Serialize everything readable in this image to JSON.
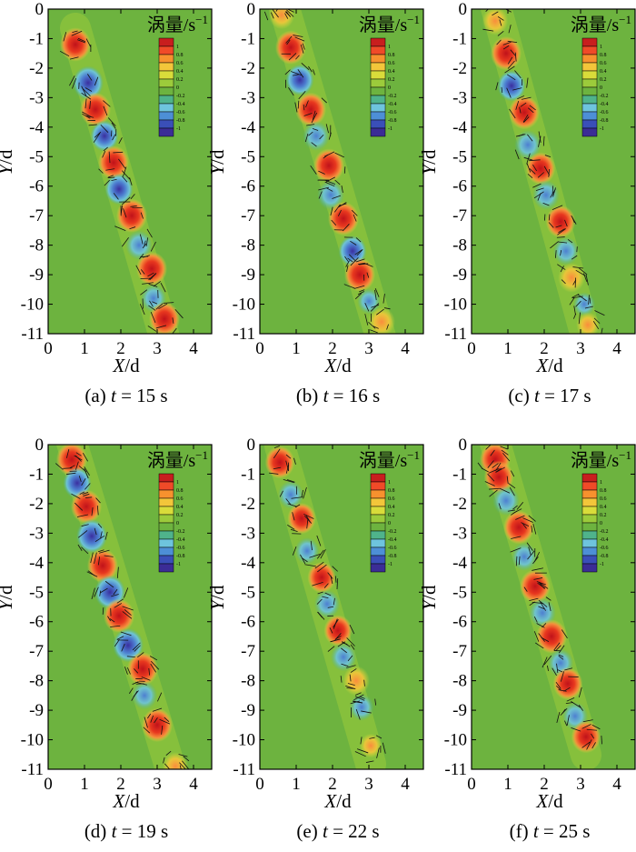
{
  "figure": {
    "colors": {
      "background": "#6db33f",
      "axis": "#000000",
      "vortex_positive": [
        "#fa8c3c",
        "#e8381f",
        "#c0121a"
      ],
      "vortex_negative": [
        "#6ec4dd",
        "#4d7fd1",
        "#3a2fa0"
      ],
      "colorbar": [
        "#c81e1e",
        "#f04a28",
        "#f7912e",
        "#f3c63a",
        "#d9dc3a",
        "#9ccb3b",
        "#6db33f",
        "#4fb38b",
        "#6ec4dd",
        "#4d8fd6",
        "#3a4fb8",
        "#3b2c96"
      ]
    }
  },
  "chart_data": [
    {
      "type": "heatmap",
      "caption_letter": "(a)",
      "caption_var": "t",
      "caption_rest": "= 15 s",
      "colorbar_title": "涡量/s",
      "colorbar_unit_sup": "−1",
      "colorbar_ticks": [
        "1",
        "0.8",
        "0.6",
        "0.4",
        "0.2",
        "0",
        "-0.2",
        "-0.4",
        "-0.6",
        "-0.8",
        "-1"
      ],
      "xlabel_var": "X",
      "xlabel_unit": "/d",
      "ylabel_var": "Y",
      "ylabel_unit": "/d",
      "xlim": [
        0,
        4.5
      ],
      "ylim": [
        -11,
        0
      ],
      "xticks": [
        0,
        1,
        2,
        3,
        4
      ],
      "yticks": [
        0,
        -1,
        -2,
        -3,
        -4,
        -5,
        -6,
        -7,
        -8,
        -9,
        -10,
        -11
      ],
      "vortices": [
        {
          "x": 0.75,
          "y": -1.2,
          "v": 1
        },
        {
          "x": 1.1,
          "y": -2.5,
          "v": -1
        },
        {
          "x": 1.3,
          "y": -3.4,
          "v": 1
        },
        {
          "x": 1.55,
          "y": -4.3,
          "v": -0.8
        },
        {
          "x": 1.8,
          "y": -5.2,
          "v": 1
        },
        {
          "x": 1.95,
          "y": -6.1,
          "v": -0.8
        },
        {
          "x": 2.3,
          "y": -7.0,
          "v": 1
        },
        {
          "x": 2.5,
          "y": -8.0,
          "v": -0.7
        },
        {
          "x": 2.85,
          "y": -8.8,
          "v": 1
        },
        {
          "x": 2.9,
          "y": -9.8,
          "v": -0.6
        },
        {
          "x": 3.2,
          "y": -10.5,
          "v": 1
        }
      ]
    },
    {
      "type": "heatmap",
      "caption_letter": "(b)",
      "caption_var": "t",
      "caption_rest": "= 16 s",
      "colorbar_title": "涡量/s",
      "colorbar_unit_sup": "−1",
      "colorbar_ticks": [
        "1",
        "0.8",
        "0.6",
        "0.4",
        "0.2",
        "0",
        "-0.2",
        "-0.4",
        "-0.6",
        "-0.8",
        "-1"
      ],
      "xlabel_var": "X",
      "xlabel_unit": "/d",
      "ylabel_var": "Y",
      "ylabel_unit": "/d",
      "xlim": [
        0,
        4.5
      ],
      "ylim": [
        -11,
        0
      ],
      "xticks": [
        0,
        1,
        2,
        3,
        4
      ],
      "yticks": [
        0,
        -1,
        -2,
        -3,
        -4,
        -5,
        -6,
        -7,
        -8,
        -9,
        -10,
        -11
      ],
      "vortices": [
        {
          "x": 0.6,
          "y": -0.2,
          "v": 0.6
        },
        {
          "x": 0.85,
          "y": -1.3,
          "v": 1
        },
        {
          "x": 1.1,
          "y": -2.4,
          "v": -0.8
        },
        {
          "x": 1.4,
          "y": -3.4,
          "v": 1
        },
        {
          "x": 1.55,
          "y": -4.3,
          "v": -0.7
        },
        {
          "x": 1.9,
          "y": -5.3,
          "v": 1
        },
        {
          "x": 1.95,
          "y": -6.3,
          "v": -0.7
        },
        {
          "x": 2.3,
          "y": -7.1,
          "v": 1
        },
        {
          "x": 2.55,
          "y": -8.2,
          "v": -0.8
        },
        {
          "x": 2.75,
          "y": -9.0,
          "v": 1
        },
        {
          "x": 3.0,
          "y": -9.9,
          "v": -0.4
        },
        {
          "x": 3.35,
          "y": -10.6,
          "v": 0.7
        }
      ]
    },
    {
      "type": "heatmap",
      "caption_letter": "(c)",
      "caption_var": "t",
      "caption_rest": "= 17 s",
      "colorbar_title": "涡量/s",
      "colorbar_unit_sup": "−1",
      "colorbar_ticks": [
        "1",
        "0.8",
        "0.6",
        "0.4",
        "0.2",
        "0",
        "-0.2",
        "-0.4",
        "-0.6",
        "-0.8",
        "-1"
      ],
      "xlabel_var": "X",
      "xlabel_unit": "/d",
      "ylabel_var": "Y",
      "ylabel_unit": "/d",
      "xlim": [
        0,
        4.5
      ],
      "ylim": [
        -11,
        0
      ],
      "xticks": [
        0,
        1,
        2,
        3,
        4
      ],
      "yticks": [
        0,
        -1,
        -2,
        -3,
        -4,
        -5,
        -6,
        -7,
        -8,
        -9,
        -10,
        -11
      ],
      "vortices": [
        {
          "x": 0.65,
          "y": -0.4,
          "v": 0.6
        },
        {
          "x": 0.95,
          "y": -1.5,
          "v": 1
        },
        {
          "x": 1.1,
          "y": -2.6,
          "v": -0.8
        },
        {
          "x": 1.45,
          "y": -3.5,
          "v": 1
        },
        {
          "x": 1.55,
          "y": -4.6,
          "v": -0.7
        },
        {
          "x": 1.9,
          "y": -5.4,
          "v": 0.9
        },
        {
          "x": 2.05,
          "y": -6.3,
          "v": -0.7
        },
        {
          "x": 2.45,
          "y": -7.2,
          "v": 0.9
        },
        {
          "x": 2.6,
          "y": -8.2,
          "v": -0.6
        },
        {
          "x": 2.75,
          "y": -9.1,
          "v": 0.7
        },
        {
          "x": 3.1,
          "y": -10.0,
          "v": -0.3
        },
        {
          "x": 3.2,
          "y": -10.7,
          "v": 0.4
        }
      ]
    },
    {
      "type": "heatmap",
      "caption_letter": "(d)",
      "caption_var": "t",
      "caption_rest": "= 19 s",
      "colorbar_title": "涡量/s",
      "colorbar_unit_sup": "−1",
      "colorbar_ticks": [
        "1",
        "0.8",
        "0.6",
        "0.4",
        "0.2",
        "0",
        "-0.2",
        "-0.4",
        "-0.6",
        "-0.8",
        "-1"
      ],
      "xlabel_var": "X",
      "xlabel_unit": "/d",
      "ylabel_var": "Y",
      "ylabel_unit": "/d",
      "xlim": [
        0,
        4.5
      ],
      "ylim": [
        -11,
        0
      ],
      "xticks": [
        0,
        1,
        2,
        3,
        4
      ],
      "yticks": [
        0,
        -1,
        -2,
        -3,
        -4,
        -5,
        -6,
        -7,
        -8,
        -9,
        -10,
        -11
      ],
      "vortices": [
        {
          "x": 0.65,
          "y": -0.5,
          "v": 1
        },
        {
          "x": 0.8,
          "y": -1.3,
          "v": -0.8
        },
        {
          "x": 1.05,
          "y": -2.1,
          "v": 1
        },
        {
          "x": 1.2,
          "y": -3.1,
          "v": -1
        },
        {
          "x": 1.5,
          "y": -4.1,
          "v": 1
        },
        {
          "x": 1.7,
          "y": -5.0,
          "v": -1
        },
        {
          "x": 1.95,
          "y": -5.8,
          "v": 1
        },
        {
          "x": 2.2,
          "y": -6.8,
          "v": -1
        },
        {
          "x": 2.6,
          "y": -7.6,
          "v": 1
        },
        {
          "x": 2.65,
          "y": -8.5,
          "v": -0.6
        },
        {
          "x": 3.0,
          "y": -9.5,
          "v": 1
        },
        {
          "x": 3.5,
          "y": -10.9,
          "v": 0.6
        }
      ]
    },
    {
      "type": "heatmap",
      "caption_letter": "(e)",
      "caption_var": "t",
      "caption_rest": "= 22 s",
      "colorbar_title": "涡量/s",
      "colorbar_unit_sup": "−1",
      "colorbar_ticks": [
        "1",
        "0.8",
        "0.6",
        "0.4",
        "0.2",
        "0",
        "-0.2",
        "-0.4",
        "-0.6",
        "-0.8",
        "-1"
      ],
      "xlabel_var": "X",
      "xlabel_unit": "/d",
      "ylabel_var": "Y",
      "ylabel_unit": "/d",
      "xlim": [
        0,
        4.5
      ],
      "ylim": [
        -11,
        0
      ],
      "xticks": [
        0,
        1,
        2,
        3,
        4
      ],
      "yticks": [
        0,
        -1,
        -2,
        -3,
        -4,
        -5,
        -6,
        -7,
        -8,
        -9,
        -10,
        -11
      ],
      "vortices": [
        {
          "x": 0.55,
          "y": -0.6,
          "v": 0.9
        },
        {
          "x": 0.85,
          "y": -1.7,
          "v": -0.6
        },
        {
          "x": 1.15,
          "y": -2.5,
          "v": 0.8
        },
        {
          "x": 1.3,
          "y": -3.6,
          "v": -0.5
        },
        {
          "x": 1.7,
          "y": -4.5,
          "v": 0.8
        },
        {
          "x": 1.85,
          "y": -5.4,
          "v": -0.6
        },
        {
          "x": 2.15,
          "y": -6.3,
          "v": 0.8
        },
        {
          "x": 2.3,
          "y": -7.2,
          "v": -0.6
        },
        {
          "x": 2.65,
          "y": -8.0,
          "v": 0.7
        },
        {
          "x": 2.8,
          "y": -8.9,
          "v": -0.5
        },
        {
          "x": 3.05,
          "y": -10.2,
          "v": 0.3
        }
      ]
    },
    {
      "type": "heatmap",
      "caption_letter": "(f)",
      "caption_var": "t",
      "caption_rest": "= 25 s",
      "colorbar_title": "涡量/s",
      "colorbar_unit_sup": "−1",
      "colorbar_ticks": [
        "1",
        "0.8",
        "0.6",
        "0.4",
        "0.2",
        "0",
        "-0.2",
        "-0.4",
        "-0.6",
        "-0.8",
        "-1"
      ],
      "xlabel_var": "X",
      "xlabel_unit": "/d",
      "ylabel_var": "Y",
      "ylabel_unit": "/d",
      "xlim": [
        0,
        4.5
      ],
      "ylim": [
        -11,
        0
      ],
      "xticks": [
        0,
        1,
        2,
        3,
        4
      ],
      "yticks": [
        0,
        -1,
        -2,
        -3,
        -4,
        -5,
        -6,
        -7,
        -8,
        -9,
        -10,
        -11
      ],
      "vortices": [
        {
          "x": 0.65,
          "y": -0.5,
          "v": 1
        },
        {
          "x": 0.75,
          "y": -1.1,
          "v": 0.9
        },
        {
          "x": 0.95,
          "y": -1.9,
          "v": -0.7
        },
        {
          "x": 1.3,
          "y": -2.8,
          "v": 1
        },
        {
          "x": 1.45,
          "y": -3.8,
          "v": -0.6
        },
        {
          "x": 1.75,
          "y": -4.8,
          "v": 1
        },
        {
          "x": 1.95,
          "y": -5.7,
          "v": -0.7
        },
        {
          "x": 2.2,
          "y": -6.5,
          "v": 1
        },
        {
          "x": 2.45,
          "y": -7.4,
          "v": -0.6
        },
        {
          "x": 2.65,
          "y": -8.1,
          "v": 0.9
        },
        {
          "x": 2.85,
          "y": -9.2,
          "v": -0.6
        },
        {
          "x": 3.15,
          "y": -9.9,
          "v": 0.9
        }
      ]
    }
  ]
}
